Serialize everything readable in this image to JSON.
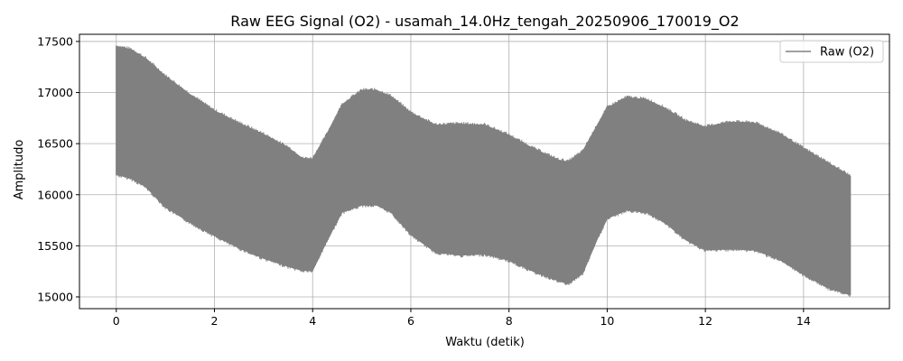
{
  "chart_data": {
    "type": "area",
    "title": "Raw EEG Signal (O2) - usamah_14.0Hz_tengah_20250906_170019_O2",
    "xlabel": "Waktu (detik)",
    "ylabel": "Amplitudo",
    "xlim": [
      -0.75,
      15.75
    ],
    "ylim": [
      14885,
      17570
    ],
    "xticks": [
      0,
      2,
      4,
      6,
      8,
      10,
      12,
      14
    ],
    "yticks": [
      15000,
      15500,
      16000,
      16500,
      17000,
      17500
    ],
    "grid": true,
    "legend_position": "top-right",
    "series": [
      {
        "name": "Raw (O2)",
        "color": "#808080",
        "envelope": {
          "x": [
            0.0,
            0.3,
            0.6,
            1.0,
            1.5,
            2.0,
            2.5,
            3.0,
            3.5,
            3.8,
            4.0,
            4.3,
            4.6,
            5.0,
            5.3,
            5.6,
            6.0,
            6.5,
            7.0,
            7.5,
            8.0,
            8.5,
            9.0,
            9.2,
            9.5,
            9.8,
            10.0,
            10.4,
            10.8,
            11.2,
            11.6,
            12.0,
            12.5,
            13.0,
            13.5,
            14.0,
            14.5,
            14.95
          ],
          "upper": [
            17450,
            17420,
            17330,
            17160,
            16980,
            16820,
            16700,
            16590,
            16460,
            16350,
            16350,
            16600,
            16880,
            17020,
            17020,
            16960,
            16800,
            16680,
            16690,
            16680,
            16580,
            16450,
            16340,
            16320,
            16420,
            16680,
            16850,
            16950,
            16930,
            16840,
            16720,
            16660,
            16710,
            16700,
            16600,
            16450,
            16310,
            16180
          ],
          "lower": [
            16200,
            16160,
            16080,
            15880,
            15730,
            15600,
            15480,
            15380,
            15300,
            15260,
            15260,
            15560,
            15830,
            15900,
            15900,
            15830,
            15610,
            15440,
            15410,
            15420,
            15360,
            15250,
            15160,
            15130,
            15230,
            15570,
            15770,
            15850,
            15830,
            15720,
            15560,
            15460,
            15470,
            15460,
            15370,
            15220,
            15090,
            15020
          ]
        }
      }
    ]
  }
}
